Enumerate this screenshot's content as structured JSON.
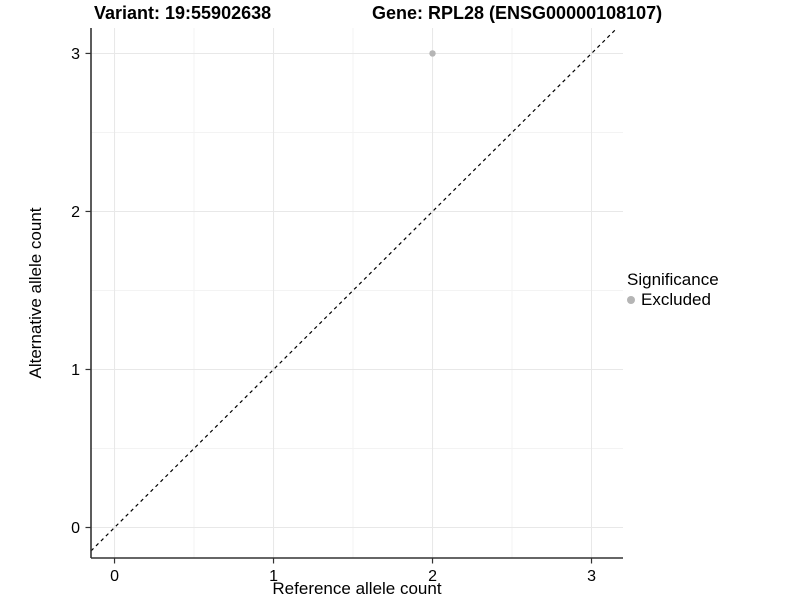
{
  "chart_data": {
    "type": "scatter",
    "title_left": "Variant: 19:55902638",
    "title_right": "Gene: RPL28 (ENSG00000108107)",
    "xlabel": "Reference allele count",
    "ylabel": "Alternative allele count",
    "xticks": [
      0,
      1,
      2,
      3
    ],
    "yticks": [
      0,
      1,
      2,
      3
    ],
    "minor_ticks": [
      0.5,
      1.5,
      2.5
    ],
    "xlim": [
      -0.148,
      3.198
    ],
    "ylim": [
      -0.193,
      3.161
    ],
    "grid": "major and minor gridlines, white background",
    "identity_line": {
      "slope": 1,
      "intercept": 0,
      "linestyle": "dashed",
      "color": "#000000"
    },
    "series": [
      {
        "name": "Excluded",
        "color": "#b5b5b5",
        "points": [
          [
            2,
            3
          ]
        ]
      }
    ],
    "legend": {
      "title": "Significance",
      "position": "right",
      "entries": [
        {
          "label": "Excluded",
          "color": "#b5b5b5"
        }
      ]
    },
    "colors": {
      "grid_major": "#e8e8e8",
      "grid_minor": "#f3f3f3",
      "axis_line": "#333333",
      "tick_mark": "#333333",
      "text": "#000000",
      "background": "#ffffff"
    }
  }
}
